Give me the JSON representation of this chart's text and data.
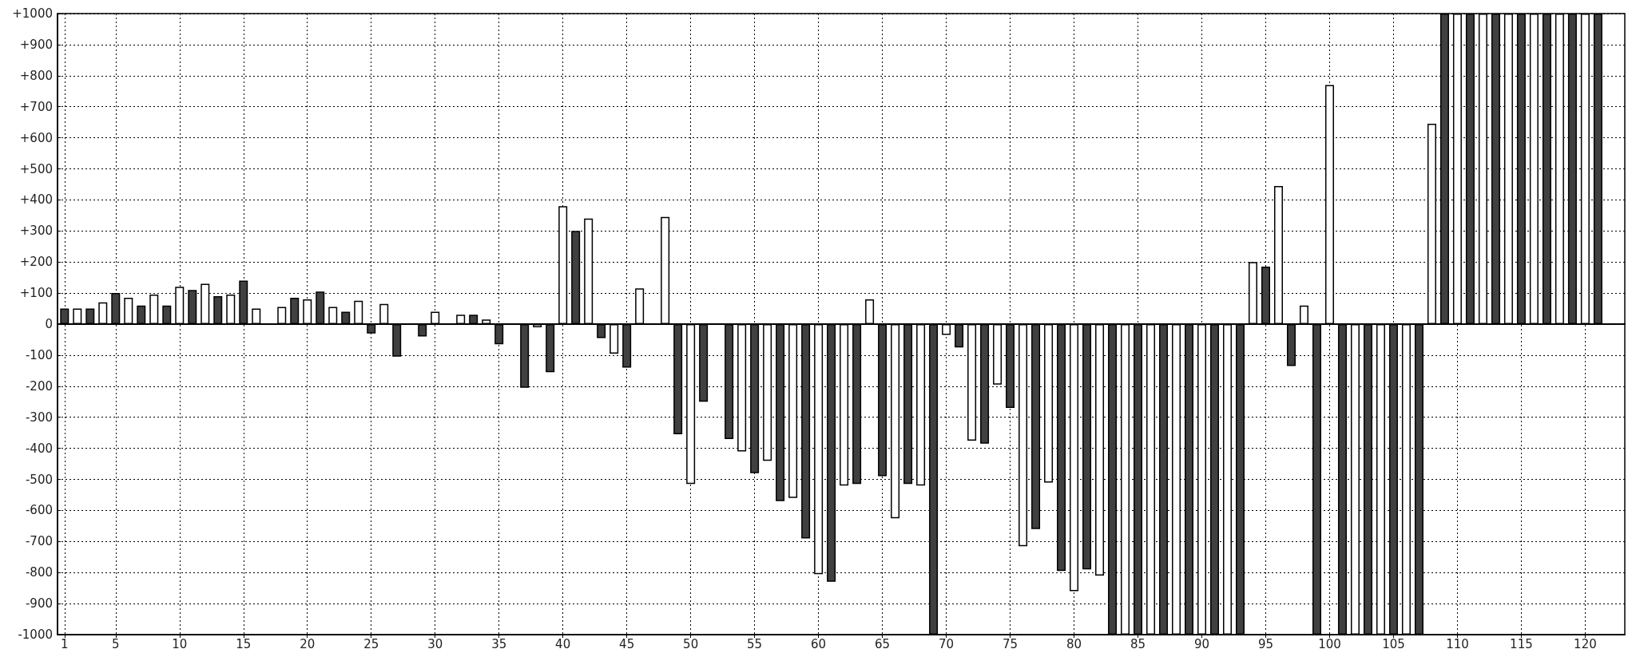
{
  "chart_data": {
    "type": "bar",
    "x": [
      1,
      2,
      3,
      4,
      5,
      6,
      7,
      8,
      9,
      10,
      11,
      12,
      13,
      14,
      15,
      16,
      17,
      18,
      19,
      20,
      21,
      22,
      23,
      24,
      25,
      26,
      27,
      28,
      29,
      30,
      31,
      32,
      33,
      34,
      35,
      36,
      37,
      38,
      39,
      40,
      41,
      42,
      43,
      44,
      45,
      46,
      47,
      48,
      49,
      50,
      51,
      52,
      53,
      54,
      55,
      56,
      57,
      58,
      59,
      60,
      61,
      62,
      63,
      64,
      65,
      66,
      67,
      68,
      69,
      70,
      71,
      72,
      73,
      74,
      75,
      76,
      77,
      78,
      79,
      80,
      81,
      82,
      83,
      84,
      85,
      86,
      87,
      88,
      89,
      90,
      91,
      92,
      93,
      94,
      95,
      96,
      97,
      98,
      99,
      100,
      101,
      102,
      103,
      104,
      105,
      106,
      107,
      108,
      109,
      110,
      111,
      112,
      113,
      114,
      115,
      116,
      117,
      118,
      119,
      120,
      121
    ],
    "values": [
      50,
      50,
      50,
      70,
      100,
      85,
      60,
      95,
      60,
      120,
      110,
      130,
      90,
      95,
      140,
      50,
      null,
      55,
      85,
      80,
      105,
      55,
      40,
      75,
      -30,
      65,
      -105,
      null,
      -40,
      40,
      null,
      30,
      30,
      15,
      -65,
      null,
      -205,
      -10,
      -155,
      380,
      300,
      340,
      -45,
      -95,
      -140,
      115,
      null,
      345,
      -355,
      -515,
      -250,
      null,
      -370,
      -410,
      -480,
      -440,
      -570,
      -560,
      -690,
      -805,
      -830,
      -520,
      -515,
      80,
      -490,
      -625,
      -515,
      -520,
      -1000,
      -35,
      -75,
      -375,
      -385,
      -195,
      -270,
      -715,
      -660,
      -510,
      -795,
      -860,
      -790,
      -810,
      -1000,
      -1000,
      -1000,
      -1000,
      -1000,
      -1000,
      -1000,
      -1000,
      -1000,
      -1000,
      -1000,
      200,
      185,
      445,
      -135,
      60,
      -1000,
      770,
      -1000,
      -1000,
      -1000,
      -1000,
      -1000,
      -1000,
      -1000,
      645,
      1000,
      1000,
      1000,
      1000,
      1000,
      1000,
      1000,
      1000,
      1000,
      1000,
      1000,
      1000,
      1000
    ],
    "colors": [
      "#404040",
      "#ffffff",
      "#404040",
      "#ffffff",
      "#404040",
      "#ffffff",
      "#404040",
      "#ffffff",
      "#404040",
      "#ffffff",
      "#404040",
      "#ffffff",
      "#404040",
      "#ffffff",
      "#404040",
      "#ffffff",
      "#404040",
      "#ffffff",
      "#404040",
      "#ffffff",
      "#404040",
      "#ffffff",
      "#404040",
      "#ffffff",
      "#404040",
      "#ffffff",
      "#404040",
      "#ffffff",
      "#404040",
      "#ffffff",
      "#404040",
      "#ffffff",
      "#404040",
      "#ffffff",
      "#404040",
      "#ffffff",
      "#404040",
      "#ffffff",
      "#404040",
      "#ffffff",
      "#404040",
      "#ffffff",
      "#404040",
      "#ffffff",
      "#404040",
      "#ffffff",
      "#404040",
      "#ffffff",
      "#404040",
      "#ffffff",
      "#404040",
      "#ffffff",
      "#404040",
      "#ffffff",
      "#404040",
      "#ffffff",
      "#404040",
      "#ffffff",
      "#404040",
      "#ffffff",
      "#404040",
      "#ffffff",
      "#404040",
      "#ffffff",
      "#404040",
      "#ffffff",
      "#404040",
      "#ffffff",
      "#404040",
      "#ffffff",
      "#404040",
      "#ffffff",
      "#404040",
      "#ffffff",
      "#404040",
      "#ffffff",
      "#404040",
      "#ffffff",
      "#404040",
      "#ffffff",
      "#404040",
      "#ffffff",
      "#404040",
      "#ffffff",
      "#404040",
      "#ffffff",
      "#404040",
      "#ffffff",
      "#404040",
      "#ffffff",
      "#404040",
      "#ffffff",
      "#404040",
      "#ffffff",
      "#404040",
      "#ffffff",
      "#404040",
      "#ffffff",
      "#404040",
      "#ffffff",
      "#404040",
      "#ffffff",
      "#404040",
      "#ffffff",
      "#404040",
      "#ffffff",
      "#404040",
      "#ffffff",
      "#404040",
      "#ffffff",
      "#404040",
      "#ffffff",
      "#404040",
      "#ffffff",
      "#404040",
      "#ffffff",
      "#404040",
      "#ffffff",
      "#404040",
      "#ffffff",
      "#404040"
    ],
    "xlim": [
      0.45,
      123.1
    ],
    "xticks": [
      1,
      5,
      10,
      15,
      20,
      25,
      30,
      35,
      40,
      45,
      50,
      55,
      60,
      65,
      70,
      75,
      80,
      85,
      90,
      95,
      100,
      105,
      110,
      115,
      120
    ],
    "ylim": [
      -1000,
      1000
    ],
    "yticks": [
      {
        "value": -1000,
        "label": "-1000"
      },
      {
        "value": -900,
        "label": "-900"
      },
      {
        "value": -800,
        "label": "-800"
      },
      {
        "value": -700,
        "label": "-700"
      },
      {
        "value": -600,
        "label": "-600"
      },
      {
        "value": -500,
        "label": "-500"
      },
      {
        "value": -400,
        "label": "-400"
      },
      {
        "value": -300,
        "label": "-300"
      },
      {
        "value": -200,
        "label": "-200"
      },
      {
        "value": -100,
        "label": "-100"
      },
      0,
      {
        "value": 100,
        "label": "+100"
      },
      {
        "value": 200,
        "label": "+200"
      },
      {
        "value": 300,
        "label": "+300"
      },
      {
        "value": 400,
        "label": "+400"
      },
      {
        "value": 500,
        "label": "+500"
      },
      {
        "value": 600,
        "label": "+600"
      },
      {
        "value": 700,
        "label": "+700"
      },
      {
        "value": 800,
        "label": "+800"
      },
      {
        "value": 900,
        "label": "+900"
      },
      {
        "value": 1000,
        "label": "+1000"
      }
    ],
    "grid": true
  }
}
